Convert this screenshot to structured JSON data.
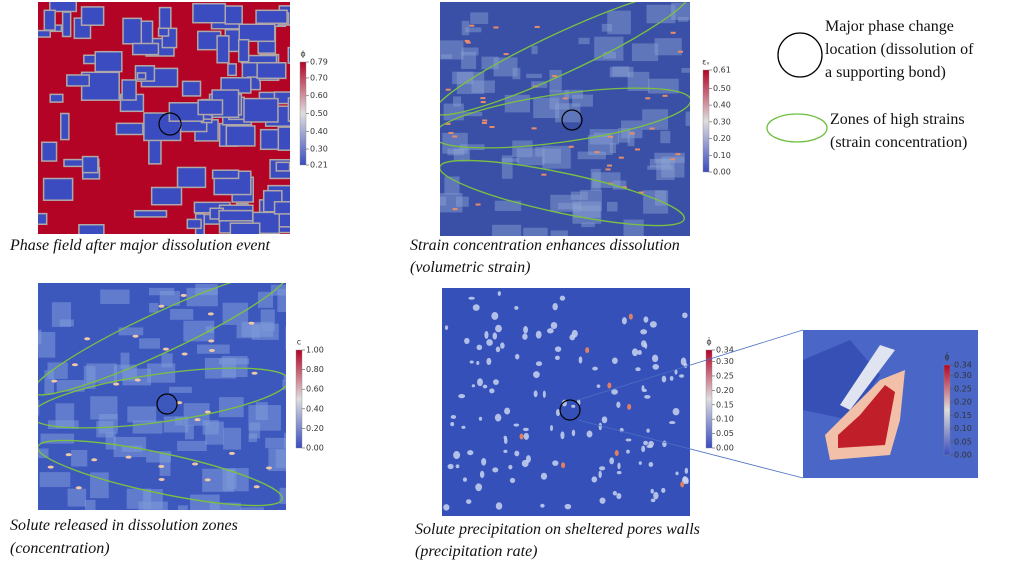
{
  "panels": [
    {
      "caption": [
        "Phase field after major dissolution event"
      ],
      "colorbar": {
        "title": "ϕ",
        "ticks": [
          "0.79",
          "0.70",
          "0.60",
          "0.50",
          "0.40",
          "0.30",
          "0.21"
        ]
      }
    },
    {
      "caption": [
        "Strain concentration enhances dissolution",
        "(volumetric strain)"
      ],
      "colorbar": {
        "title": "εᵥ",
        "ticks": [
          "0.61",
          "0.50",
          "0.40",
          "0.30",
          "0.20",
          "0.10",
          "0.00"
        ]
      }
    },
    {
      "caption": [
        "Solute released in dissolution zones",
        "(concentration)"
      ],
      "colorbar": {
        "title": "c",
        "ticks": [
          "1.00",
          "0.80",
          "0.60",
          "0.40",
          "0.20",
          "0.00"
        ]
      }
    },
    {
      "caption": [
        "Solute precipitation on sheltered pores walls",
        "(precipitation rate)"
      ],
      "colorbar": {
        "title": "ϕ̇",
        "ticks": [
          "0.34",
          "0.30",
          "0.25",
          "0.20",
          "0.15",
          "0.10",
          "0.05",
          "0.00"
        ]
      }
    }
  ],
  "inset": {
    "colorbar": {
      "title": "ϕ̇",
      "ticks": [
        "0.34",
        "0.30",
        "0.25",
        "0.20",
        "0.15",
        "0.10",
        "0.05",
        "0.00"
      ]
    }
  },
  "legend": [
    {
      "label": [
        "Major phase change",
        "location (dissolution of",
        "a supporting bond)"
      ]
    },
    {
      "label": [
        "Zones of high strains",
        "(strain concentration)"
      ]
    }
  ]
}
